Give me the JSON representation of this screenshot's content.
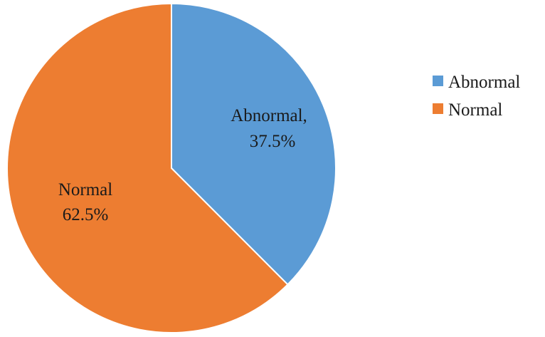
{
  "chart_data": {
    "type": "pie",
    "title": "",
    "legend_position": "right",
    "slices": [
      {
        "name": "Abnormal",
        "value": 37.5,
        "label_line1": "Abnormal,",
        "label_line2": "37.5%",
        "color": "#5b9bd5"
      },
      {
        "name": "Normal",
        "value": 62.5,
        "label_line1": "Normal",
        "label_line2": "62.5%",
        "color": "#ed7d31"
      }
    ],
    "legend": [
      {
        "label": "Abnormal",
        "color": "#5b9bd5"
      },
      {
        "label": "Normal",
        "color": "#ed7d31"
      }
    ]
  }
}
